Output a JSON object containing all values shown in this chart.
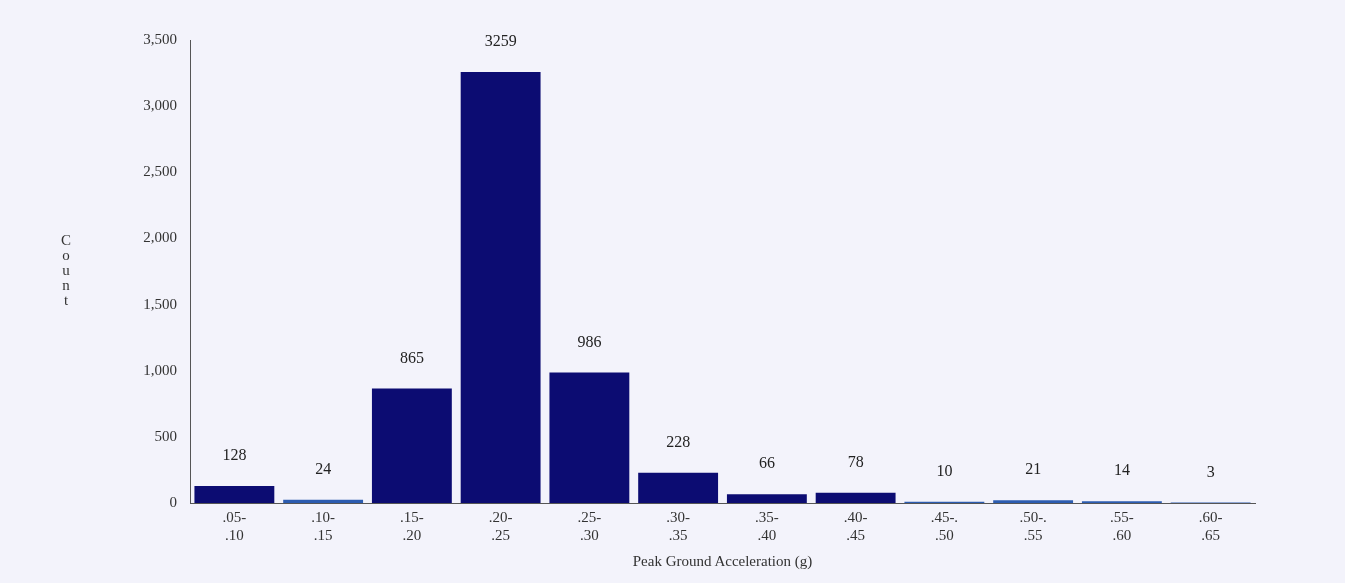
{
  "chart_data": {
    "type": "bar",
    "xlabel": "Peak Ground Acceleration (g)",
    "ylabel": "Count",
    "categories": [
      ".05-\n.10",
      ".10-\n.15",
      ".15-\n.20",
      ".20-\n.25",
      ".25-\n.30",
      ".30-\n.35",
      ".35-\n.40",
      ".40-\n.45",
      ".45-.\n.50",
      ".50-.\n.55",
      ".55-\n.60",
      ".60-\n.65"
    ],
    "values": [
      128,
      24,
      865,
      3259,
      986,
      228,
      66,
      78,
      10,
      21,
      14,
      3
    ],
    "colors": [
      "#0c0c72",
      "#2c5cb0",
      "#0c0c72",
      "#0c0c72",
      "#0c0c72",
      "#0c0c72",
      "#0c0c72",
      "#0c0c72",
      "#2c5cb0",
      "#2c5cb0",
      "#2c5cb0",
      "#2c5cb0"
    ],
    "ylim": [
      0,
      3500
    ],
    "yticks": [
      0,
      500,
      {
        "value": 1000,
        "label": "1,000"
      },
      {
        "value": 1500,
        "label": "1,500"
      },
      {
        "value": 2000,
        "label": "2,000"
      },
      {
        "value": 2500,
        "label": "2,500"
      },
      {
        "value": 3000,
        "label": "3,000"
      },
      {
        "value": 3500,
        "label": "3,500"
      }
    ],
    "data_labels": true,
    "grid": false,
    "legend": false
  }
}
